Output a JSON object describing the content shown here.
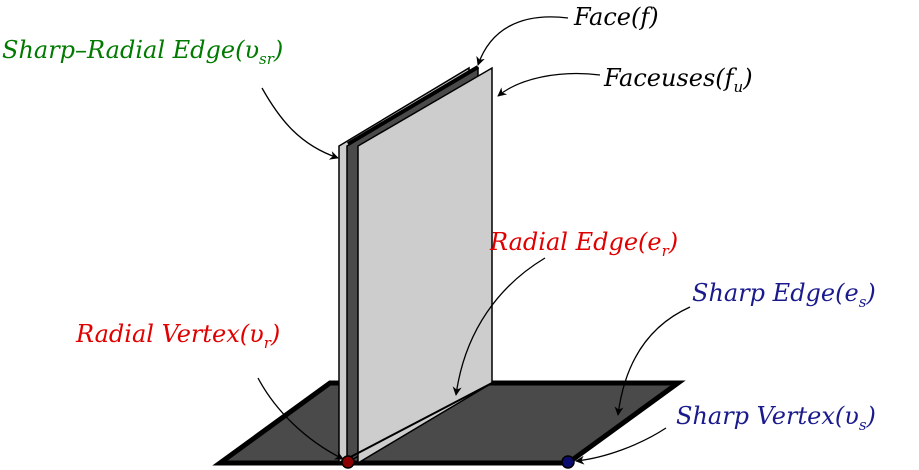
{
  "diagram": {
    "colors": {
      "black": "#000000",
      "floor_fill": "#4a4a4a",
      "faceuse_fill": "#cdcdcd",
      "face_fill": "#4a4a4a",
      "green": "#007a00",
      "red": "#e00000",
      "blue": "#1a1a8c",
      "radial_vertex_dot": "#8b0000",
      "sharp_vertex_dot": "#0b0b6e"
    },
    "labels": {
      "face": {
        "text": "Face(",
        "symbol": "f",
        "sub": "",
        "close": ")"
      },
      "faceuses": {
        "text": "Faceuses(",
        "symbol": "f",
        "sub": "u",
        "close": ")"
      },
      "sharp_radial_edge": {
        "text": "Sharp–Radial Edge(",
        "symbol": "υ",
        "sub": "sr",
        "close": ")"
      },
      "radial_edge": {
        "text": "Radial Edge(",
        "symbol": "e",
        "sub": "r",
        "close": ")"
      },
      "radial_vertex": {
        "text": "Radial Vertex(",
        "symbol": "υ",
        "sub": "r",
        "close": ")"
      },
      "sharp_edge": {
        "text": "Sharp Edge(",
        "symbol": "e",
        "sub": "s",
        "close": ")"
      },
      "sharp_vertex": {
        "text": "Sharp Vertex(",
        "symbol": "υ",
        "sub": "s",
        "close": ")"
      }
    }
  }
}
